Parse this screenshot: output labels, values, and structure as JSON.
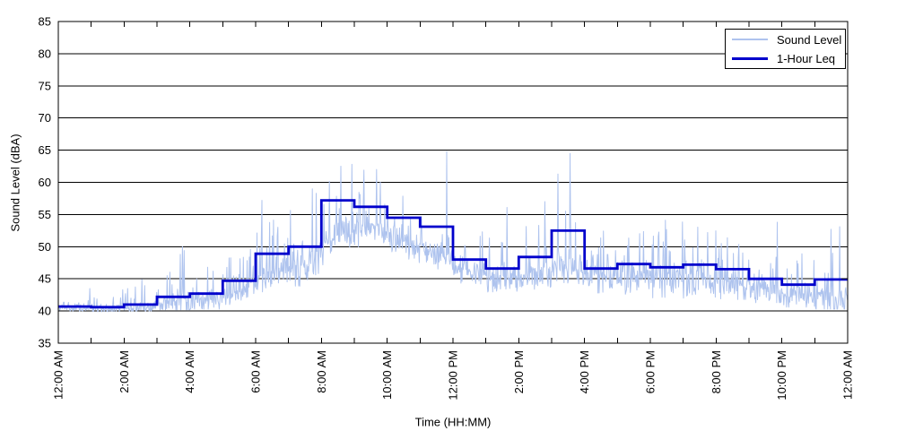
{
  "figure": {
    "background": "#FFFFFF",
    "axis_color": "#000000",
    "grid_color": "#000000"
  },
  "chart_data": {
    "type": "line",
    "title": "",
    "xlabel": "Time (HH:MM)",
    "ylabel": "Sound Level (dBA)",
    "ylim": [
      35,
      85
    ],
    "xlim_hours": [
      0,
      24
    ],
    "grid": "horizontal",
    "legend_position": "top-right",
    "y_axis": {
      "label": "Sound Level (dBA)",
      "ticks": [
        35,
        40,
        45,
        50,
        55,
        60,
        65,
        70,
        75,
        80,
        85
      ]
    },
    "x_axis": {
      "label": "Time (HH:MM)",
      "minor_tick_interval_hours": 1,
      "ticks": [
        {
          "hour": 0,
          "label": "12:00 AM"
        },
        {
          "hour": 2,
          "label": "2:00 AM"
        },
        {
          "hour": 4,
          "label": "4:00 AM"
        },
        {
          "hour": 6,
          "label": "6:00 AM"
        },
        {
          "hour": 8,
          "label": "8:00 AM"
        },
        {
          "hour": 10,
          "label": "10:00 AM"
        },
        {
          "hour": 12,
          "label": "12:00 PM"
        },
        {
          "hour": 14,
          "label": "2:00 PM"
        },
        {
          "hour": 16,
          "label": "4:00 PM"
        },
        {
          "hour": 18,
          "label": "6:00 PM"
        },
        {
          "hour": 20,
          "label": "8:00 PM"
        },
        {
          "hour": 22,
          "label": "10:00 PM"
        },
        {
          "hour": 24,
          "label": "12:00 AM"
        }
      ]
    },
    "series": [
      {
        "name": "Sound Level",
        "color": "#AEC3EE",
        "line_width": 1,
        "kind": "minute-noise",
        "points_per_hour": 60,
        "noise_seed": 11,
        "hour_envelope": [
          {
            "base": 40.4,
            "dip": 40.0,
            "peak": 43.0
          },
          {
            "base": 40.3,
            "dip": 39.9,
            "peak": 43.3
          },
          {
            "base": 40.5,
            "dip": 40.0,
            "peak": 44.9
          },
          {
            "base": 41.0,
            "dip": 40.2,
            "peak": 47.0
          },
          {
            "base": 41.4,
            "dip": 40.3,
            "peak": 47.5
          },
          {
            "base": 42.8,
            "dip": 41.0,
            "peak": 49.0
          },
          {
            "base": 45.8,
            "dip": 42.3,
            "peak": 55.0
          },
          {
            "base": 46.5,
            "dip": 42.8,
            "peak": 57.0
          },
          {
            "base": 52.0,
            "dip": 46.0,
            "peak": 62.0
          },
          {
            "base": 52.5,
            "dip": 46.5,
            "peak": 61.0
          },
          {
            "base": 50.5,
            "dip": 45.5,
            "peak": 59.5
          },
          {
            "base": 48.5,
            "dip": 44.5,
            "peak": 57.0
          },
          {
            "base": 46.0,
            "dip": 43.5,
            "peak": 53.5
          },
          {
            "base": 44.8,
            "dip": 42.8,
            "peak": 54.0
          },
          {
            "base": 45.8,
            "dip": 43.3,
            "peak": 55.5
          },
          {
            "base": 46.5,
            "dip": 43.3,
            "peak": 57.5
          },
          {
            "base": 45.0,
            "dip": 42.8,
            "peak": 53.0
          },
          {
            "base": 45.3,
            "dip": 42.5,
            "peak": 54.0
          },
          {
            "base": 44.8,
            "dip": 42.0,
            "peak": 55.0
          },
          {
            "base": 45.0,
            "dip": 42.0,
            "peak": 55.5
          },
          {
            "base": 44.2,
            "dip": 41.8,
            "peak": 53.5
          },
          {
            "base": 43.0,
            "dip": 41.3,
            "peak": 51.0
          },
          {
            "base": 42.2,
            "dip": 40.6,
            "peak": 49.0
          },
          {
            "base": 41.5,
            "dip": 40.3,
            "peak": 50.0
          }
        ],
        "spike_events": [
          {
            "minute": 57,
            "dBA": 43.5
          },
          {
            "minute": 117,
            "dBA": 43.3
          },
          {
            "minute": 152,
            "dBA": 44.9
          },
          {
            "minute": 222,
            "dBA": 48.8
          },
          {
            "minute": 226,
            "dBA": 50.0
          },
          {
            "minute": 229,
            "dBA": 49.4
          },
          {
            "minute": 350,
            "dBA": 49.6
          },
          {
            "minute": 371,
            "dBA": 57.2
          },
          {
            "minute": 463,
            "dBA": 59.0
          },
          {
            "minute": 470,
            "dBA": 58.3
          },
          {
            "minute": 515,
            "dBA": 62.5
          },
          {
            "minute": 535,
            "dBA": 62.8
          },
          {
            "minute": 557,
            "dBA": 61.9
          },
          {
            "minute": 580,
            "dBA": 62.0
          },
          {
            "minute": 708,
            "dBA": 64.8
          },
          {
            "minute": 818,
            "dBA": 56.1
          },
          {
            "minute": 887,
            "dBA": 57.0
          },
          {
            "minute": 911,
            "dBA": 61.3
          },
          {
            "minute": 933,
            "dBA": 64.5
          },
          {
            "minute": 1311,
            "dBA": 53.8
          },
          {
            "minute": 1356,
            "dBA": 48.9
          },
          {
            "minute": 1409,
            "dBA": 52.7
          },
          {
            "minute": 1425,
            "dBA": 53.1
          }
        ]
      },
      {
        "name": "1-Hour Leq",
        "color": "#0000CC",
        "line_width": 2.8,
        "kind": "hourly-step",
        "values": [
          40.7,
          40.6,
          41.0,
          42.2,
          42.7,
          44.7,
          48.9,
          50.0,
          57.2,
          56.2,
          54.5,
          53.1,
          48.0,
          46.6,
          48.4,
          52.5,
          46.6,
          47.3,
          46.8,
          47.2,
          46.5,
          45.0,
          44.1,
          44.9
        ]
      }
    ]
  }
}
